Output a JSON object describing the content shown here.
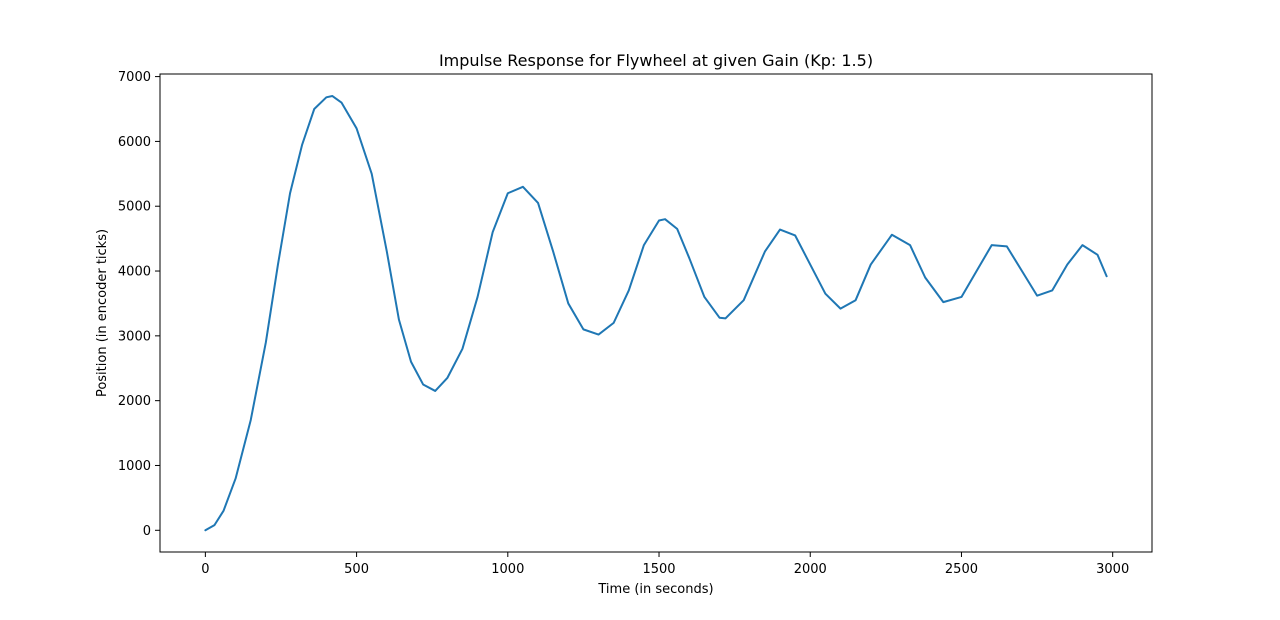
{
  "chart_data": {
    "type": "line",
    "title": "Impulse Response for Flywheel at given Gain (Kp: 1.5)",
    "xlabel": "Time (in seconds)",
    "ylabel": "Position (in encoder ticks)",
    "xlim": [
      -150,
      3130
    ],
    "ylim": [
      -335,
      7040
    ],
    "xticks": [
      0,
      500,
      1000,
      1500,
      2000,
      2500,
      3000
    ],
    "yticks": [
      0,
      1000,
      2000,
      3000,
      4000,
      5000,
      6000,
      7000
    ],
    "grid": false,
    "line_color": "#1f77b4",
    "series": [
      {
        "x": [
          0,
          30,
          60,
          100,
          150,
          200,
          240,
          280,
          320,
          360,
          400,
          420,
          450,
          500,
          550,
          600,
          640,
          680,
          720,
          760,
          800,
          850,
          900,
          950,
          1000,
          1050,
          1100,
          1150,
          1200,
          1250,
          1300,
          1350,
          1400,
          1450,
          1500,
          1520,
          1560,
          1600,
          1650,
          1700,
          1720,
          1780,
          1850,
          1900,
          1950,
          2000,
          2050,
          2100,
          2150,
          2200,
          2270,
          2330,
          2380,
          2440,
          2500,
          2550,
          2600,
          2650,
          2700,
          2750,
          2800,
          2850,
          2900,
          2950,
          2980
        ],
        "y": [
          0,
          80,
          300,
          800,
          1700,
          2900,
          4100,
          5200,
          5950,
          6500,
          6680,
          6700,
          6600,
          6200,
          5500,
          4300,
          3250,
          2600,
          2250,
          2150,
          2350,
          2800,
          3600,
          4600,
          5200,
          5300,
          5050,
          4300,
          3500,
          3100,
          3020,
          3200,
          3700,
          4400,
          4780,
          4800,
          4650,
          4200,
          3600,
          3280,
          3270,
          3550,
          4300,
          4640,
          4550,
          4100,
          3650,
          3420,
          3550,
          4100,
          4560,
          4400,
          3900,
          3520,
          3600,
          4000,
          4400,
          4380,
          4000,
          3620,
          3700,
          4100,
          4400,
          4250,
          3920
        ]
      }
    ]
  }
}
